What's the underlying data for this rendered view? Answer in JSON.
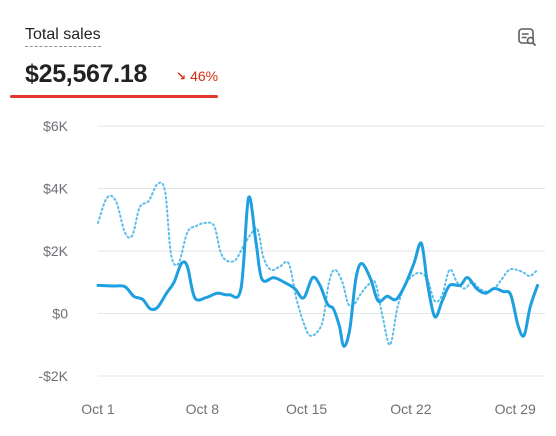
{
  "card": {
    "title": "Total sales",
    "total": "$25,567.18",
    "change": "46%",
    "change_direction": "down",
    "change_color": "#d82c0d",
    "action_icon": "chart-search-icon"
  },
  "colors": {
    "series_current": "#1e9fe0",
    "series_previous": "#5bbde9",
    "grid": "#e4e5e7",
    "label": "#6d7175",
    "accent_underline": "#e2382c"
  },
  "chart_data": {
    "type": "line",
    "x_tick_labels": [
      "Oct 1",
      "Oct 8",
      "Oct 15",
      "Oct 22",
      "Oct 29"
    ],
    "x_tick_days": [
      1,
      8,
      15,
      22,
      29
    ],
    "y_tick_labels": [
      "-$2K",
      "$0",
      "$2K",
      "$4K",
      "$6K"
    ],
    "y_tick_values": [
      -2000,
      0,
      2000,
      4000,
      6000
    ],
    "ylim": [
      -2000,
      6000
    ],
    "xlim": [
      1,
      31
    ],
    "grid": true,
    "legend": "none",
    "series": [
      {
        "style": "solid",
        "points": [
          [
            1,
            900
          ],
          [
            2,
            880
          ],
          [
            2.8,
            860
          ],
          [
            3.4,
            550
          ],
          [
            4,
            450
          ],
          [
            4.5,
            150
          ],
          [
            5,
            200
          ],
          [
            5.6,
            650
          ],
          [
            6.1,
            1000
          ],
          [
            6.6,
            1600
          ],
          [
            7,
            1500
          ],
          [
            7.5,
            500
          ],
          [
            8.3,
            520
          ],
          [
            9,
            650
          ],
          [
            9.8,
            600
          ],
          [
            10.6,
            800
          ],
          [
            11.1,
            3700
          ],
          [
            11.6,
            2300
          ],
          [
            12,
            1100
          ],
          [
            12.8,
            1150
          ],
          [
            13.5,
            1000
          ],
          [
            14.2,
            800
          ],
          [
            14.8,
            500
          ],
          [
            15.4,
            1150
          ],
          [
            15.9,
            900
          ],
          [
            16.4,
            300
          ],
          [
            16.8,
            150
          ],
          [
            17.2,
            -400
          ],
          [
            17.5,
            -1050
          ],
          [
            17.9,
            -500
          ],
          [
            18.3,
            1100
          ],
          [
            18.7,
            1600
          ],
          [
            19.3,
            1100
          ],
          [
            19.8,
            400
          ],
          [
            20.4,
            550
          ],
          [
            21,
            450
          ],
          [
            21.6,
            900
          ],
          [
            22.2,
            1600
          ],
          [
            22.7,
            2250
          ],
          [
            23.1,
            1000
          ],
          [
            23.6,
            -100
          ],
          [
            24.1,
            400
          ],
          [
            24.6,
            900
          ],
          [
            25.3,
            900
          ],
          [
            25.8,
            1150
          ],
          [
            26.4,
            800
          ],
          [
            27,
            650
          ],
          [
            27.6,
            800
          ],
          [
            28.2,
            700
          ],
          [
            28.7,
            600
          ],
          [
            29.2,
            -400
          ],
          [
            29.6,
            -700
          ],
          [
            30,
            200
          ],
          [
            30.5,
            900
          ]
        ]
      },
      {
        "style": "dotted",
        "points": [
          [
            1,
            2900
          ],
          [
            1.6,
            3700
          ],
          [
            2.2,
            3600
          ],
          [
            2.8,
            2600
          ],
          [
            3.3,
            2500
          ],
          [
            3.8,
            3400
          ],
          [
            4.4,
            3600
          ],
          [
            5,
            4150
          ],
          [
            5.5,
            3900
          ],
          [
            5.9,
            1900
          ],
          [
            6.4,
            1600
          ],
          [
            7,
            2600
          ],
          [
            7.6,
            2800
          ],
          [
            8.2,
            2900
          ],
          [
            8.8,
            2800
          ],
          [
            9.2,
            2000
          ],
          [
            9.6,
            1700
          ],
          [
            10.2,
            1700
          ],
          [
            10.7,
            2100
          ],
          [
            11.2,
            2500
          ],
          [
            11.7,
            2700
          ],
          [
            12.1,
            1800
          ],
          [
            12.6,
            1400
          ],
          [
            13.2,
            1500
          ],
          [
            13.8,
            1600
          ],
          [
            14.3,
            500
          ],
          [
            14.8,
            -300
          ],
          [
            15.2,
            -700
          ],
          [
            15.7,
            -600
          ],
          [
            16.1,
            -200
          ],
          [
            16.5,
            1000
          ],
          [
            16.9,
            1400
          ],
          [
            17.4,
            1000
          ],
          [
            17.8,
            300
          ],
          [
            18.2,
            300
          ],
          [
            18.6,
            600
          ],
          [
            19.1,
            900
          ],
          [
            19.6,
            1000
          ],
          [
            20.1,
            -100
          ],
          [
            20.6,
            -1000
          ],
          [
            21.1,
            200
          ],
          [
            21.6,
            900
          ],
          [
            22.1,
            1200
          ],
          [
            22.6,
            1300
          ],
          [
            23.1,
            1100
          ],
          [
            23.6,
            400
          ],
          [
            24.1,
            600
          ],
          [
            24.6,
            1400
          ],
          [
            25.1,
            1000
          ],
          [
            25.6,
            800
          ],
          [
            26.1,
            1000
          ],
          [
            26.6,
            800
          ],
          [
            27.1,
            700
          ],
          [
            27.6,
            800
          ],
          [
            28.1,
            1100
          ],
          [
            28.6,
            1400
          ],
          [
            29.1,
            1400
          ],
          [
            29.6,
            1300
          ],
          [
            30,
            1200
          ],
          [
            30.5,
            1400
          ]
        ]
      }
    ]
  }
}
